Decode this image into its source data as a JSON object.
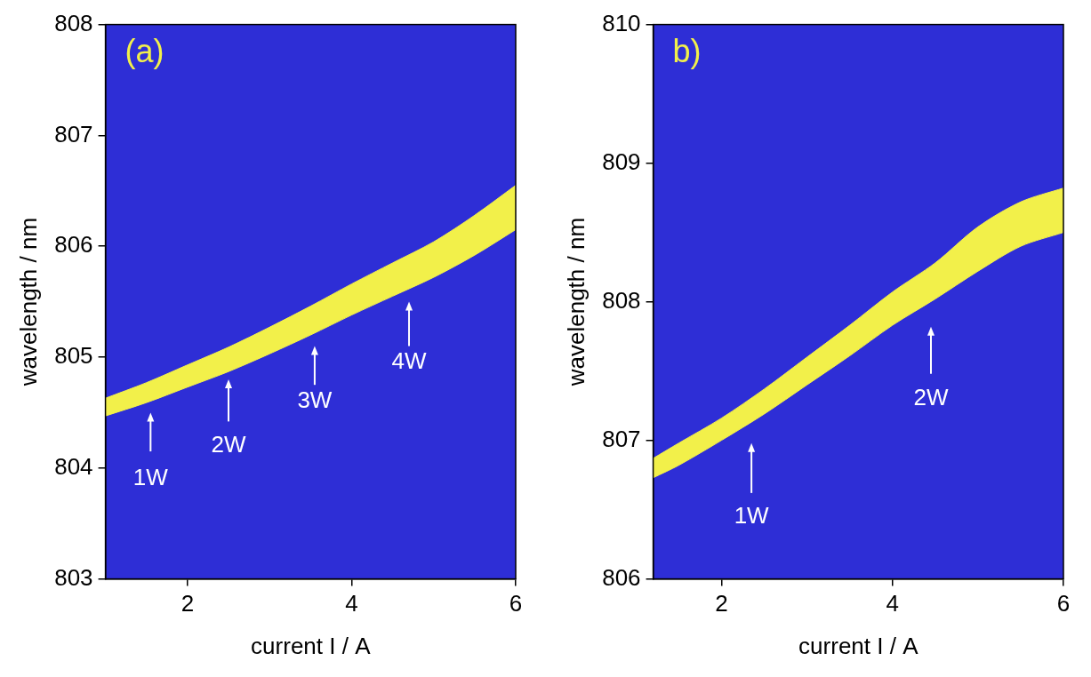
{
  "chart_data": [
    {
      "type": "area",
      "panel_label": "(a)",
      "x_label": "current I / A",
      "y_label": "wavelength / nm",
      "x": [
        1,
        1.5,
        2,
        2.5,
        3,
        3.5,
        4,
        4.5,
        5,
        5.5,
        6
      ],
      "band_lower": [
        804.47,
        804.59,
        804.73,
        804.87,
        805.03,
        805.2,
        805.38,
        805.55,
        805.72,
        805.92,
        806.15
      ],
      "band_upper": [
        804.63,
        804.77,
        804.93,
        805.09,
        805.27,
        805.46,
        805.66,
        805.85,
        806.04,
        806.28,
        806.55
      ],
      "color": "#f2f04a",
      "xlim": [
        1,
        6
      ],
      "xticks": [
        2,
        4,
        6
      ],
      "ylim": [
        803,
        808
      ],
      "yticks": [
        803,
        804,
        805,
        806,
        807,
        808
      ],
      "grid": false,
      "annotations": [
        {
          "text": "1W",
          "x": 1.55,
          "y": 803.9,
          "arrow_y": [
            804.15,
            804.5
          ]
        },
        {
          "text": "2W",
          "x": 2.5,
          "y": 804.2,
          "arrow_y": [
            804.42,
            804.8
          ]
        },
        {
          "text": "3W",
          "x": 3.55,
          "y": 804.6,
          "arrow_y": [
            804.75,
            805.1
          ]
        },
        {
          "text": "4W",
          "x": 4.7,
          "y": 804.95,
          "arrow_y": [
            805.1,
            805.5
          ]
        }
      ]
    },
    {
      "type": "area",
      "panel_label": "b)",
      "x_label": "current I / A",
      "y_label": "wavelength / nm",
      "x": [
        1.2,
        1.5,
        2,
        2.5,
        3,
        3.5,
        4,
        4.5,
        5,
        5.5,
        6
      ],
      "band_lower": [
        806.73,
        806.82,
        807.0,
        807.19,
        807.4,
        807.61,
        807.83,
        808.02,
        808.22,
        808.4,
        808.5
      ],
      "band_upper": [
        806.87,
        806.98,
        807.16,
        807.37,
        807.6,
        807.83,
        808.07,
        808.28,
        808.54,
        808.72,
        808.82
      ],
      "color": "#f2f04a",
      "xlim": [
        1.2,
        6
      ],
      "xticks": [
        2,
        4,
        6
      ],
      "ylim": [
        806,
        810
      ],
      "yticks": [
        806,
        807,
        808,
        809,
        810
      ],
      "grid": false,
      "annotations": [
        {
          "text": "1W",
          "x": 2.35,
          "y": 806.45,
          "arrow_y": [
            806.62,
            806.98
          ]
        },
        {
          "text": "2W",
          "x": 4.45,
          "y": 807.3,
          "arrow_y": [
            807.48,
            807.82
          ]
        }
      ]
    }
  ]
}
